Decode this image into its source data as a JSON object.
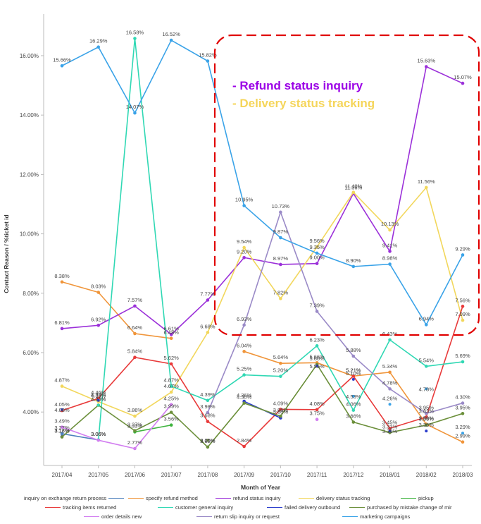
{
  "chart_data": {
    "type": "line",
    "title": "",
    "xlabel": "Month of Year",
    "ylabel": "Contact Reason / %ticket id",
    "categories": [
      "2017/04",
      "2017/05",
      "2017/06",
      "2017/07",
      "2017/08",
      "2017/09",
      "2017/10",
      "2017/11",
      "2017/12",
      "2018/01",
      "2018/02",
      "2018/03"
    ],
    "ylim": [
      2.2,
      17.4
    ],
    "yticks": [
      "4.00%",
      "6.00%",
      "8.00%",
      "10.00%",
      "12.00%",
      "14.00%",
      "16.00%"
    ],
    "ytick_values": [
      4,
      6,
      8,
      10,
      12,
      14,
      16
    ],
    "grid": false,
    "legend_position": "bottom",
    "series": [
      {
        "name": "inquiry on exchange  return process",
        "color": "#4f81bd",
        "values": [
          3.27,
          3.06,
          null,
          null,
          null,
          null,
          null,
          null,
          null,
          null,
          null,
          null
        ],
        "labels": [
          "3.27%",
          "3.06%",
          null,
          null,
          null,
          null,
          null,
          null,
          null,
          null,
          null,
          null
        ]
      },
      {
        "name": "specify refund method",
        "color": "#f0953a",
        "values": [
          8.38,
          8.03,
          6.64,
          6.48,
          null,
          6.04,
          5.64,
          5.66,
          5.21,
          5.34,
          3.59,
          2.99
        ],
        "labels": [
          "8.38%",
          "8.03%",
          "6.64%",
          "6.48%",
          null,
          "6.04%",
          "5.64%",
          "5.66%",
          "5.21%",
          "5.34%",
          "3.59%",
          "2.99%"
        ]
      },
      {
        "name": "refund status inquiry",
        "color": "#9b30d9",
        "values": [
          6.81,
          6.92,
          7.57,
          6.61,
          7.77,
          9.2,
          8.97,
          9.0,
          11.36,
          9.41,
          15.63,
          15.07
        ],
        "labels": [
          "6.81%",
          "6.92%",
          "7.57%",
          "6.61%",
          "7.77%",
          "9.20%",
          "8.97%",
          "9.00%",
          "11.36%",
          "9.41%",
          "15.63%",
          "15.07%"
        ]
      },
      {
        "name": "delivery status tracking",
        "color": "#f2d75c",
        "values": [
          4.87,
          4.35,
          3.86,
          4.67,
          6.68,
          9.54,
          7.82,
          9.56,
          11.4,
          10.13,
          11.56,
          7.09
        ],
        "labels": [
          "4.87%",
          "4.35%",
          "3.86%",
          "4.67%",
          "6.68%",
          "9.54%",
          "7.82%",
          "9.56%",
          "11.40%",
          "10.13%",
          "11.56%",
          "7.09%"
        ]
      },
      {
        "name": "pickup",
        "color": "#3fb43f",
        "values": [
          null,
          null,
          3.33,
          3.56,
          null,
          null,
          null,
          null,
          null,
          null,
          null,
          null
        ],
        "labels": [
          null,
          null,
          "3.33%",
          "3.56%",
          null,
          null,
          null,
          null,
          null,
          null,
          null,
          null
        ]
      },
      {
        "name": "tracking items returned",
        "color": "#e83a3a",
        "values": [
          4.05,
          4.46,
          5.84,
          5.62,
          3.68,
          2.84,
          4.09,
          4.08,
          5.21,
          3.45,
          3.83,
          7.56
        ],
        "labels": [
          "4.05%",
          "4.46%",
          "5.84%",
          "5.62%",
          "3.68%",
          "2.84%",
          "4.09%",
          "4.08%",
          "5.21%",
          "3.45%",
          "3.83%",
          "7.56%"
        ]
      },
      {
        "name": "customer general inquiry",
        "color": "#30d8b4",
        "values": [
          null,
          3.06,
          16.58,
          4.87,
          4.39,
          5.25,
          5.2,
          6.23,
          4.06,
          6.43,
          5.54,
          5.69
        ],
        "labels": [
          null,
          "3.06%",
          "16.58%",
          "4.87%",
          "4.39%",
          "5.25%",
          "5.20%",
          "6.23%",
          "4.06%",
          "6.43%",
          "5.54%",
          "5.69%"
        ]
      },
      {
        "name": "failed delivery outbound",
        "color": "#2a3ccc",
        "values": [
          3.17,
          null,
          null,
          null,
          null,
          4.36,
          3.8,
          null,
          null,
          null,
          null,
          null
        ],
        "labels": [
          "3.17%",
          null,
          null,
          null,
          null,
          "4.36%",
          "3.80%",
          null,
          null,
          null,
          null,
          null
        ]
      },
      {
        "name": "purchased by mistake  change of mir",
        "color": "#6b8f3a",
        "values": [
          3.16,
          4.23,
          3.37,
          3.99,
          2.82,
          4.3,
          3.86,
          5.6,
          3.66,
          3.31,
          3.56,
          3.95
        ],
        "labels": [
          "3.16%",
          "4.23%",
          "3.37%",
          "3.99%",
          "2.82%",
          "4.30%",
          "3.86%",
          "5.60%",
          "3.66%",
          "3.31%",
          "3.56%",
          "3.95%"
        ]
      },
      {
        "name": "order details  new",
        "color": "#d27ef0",
        "values": [
          3.49,
          3.05,
          2.77,
          4.25,
          null,
          null,
          null,
          3.75,
          null,
          null,
          null,
          null
        ],
        "labels": [
          "3.49%",
          "3.05%",
          "2.77%",
          "4.25%",
          null,
          null,
          null,
          "3.75%",
          null,
          null,
          null,
          null
        ]
      },
      {
        "name": "return slip inquiry or request",
        "color": "#9a8ac7",
        "values": [
          null,
          null,
          null,
          null,
          3.98,
          6.93,
          10.73,
          7.39,
          5.88,
          4.78,
          3.95,
          4.3
        ],
        "labels": [
          null,
          null,
          null,
          null,
          "3.98%",
          "6.93%",
          "10.73%",
          "7.39%",
          "5.88%",
          "4.78%",
          "3.95%",
          "4.30%"
        ]
      },
      {
        "name": "marketing campaigns",
        "color": "#3aa3e8",
        "values": [
          15.66,
          16.29,
          14.07,
          16.52,
          15.82,
          10.95,
          9.87,
          9.35,
          8.9,
          8.98,
          6.94,
          9.29
        ],
        "labels": [
          "15.66%",
          "16.29%",
          "14.07%",
          "16.52%",
          "15.82%",
          "10.95%",
          "9.87%",
          "9.35%",
          "8.90%",
          "8.98%",
          "6.94%",
          "9.29%"
        ]
      }
    ],
    "extra_points": [
      {
        "series": "customer general inquiry",
        "x": "2017/05",
        "label": "4.23%"
      },
      {
        "series": "marketing campaigns",
        "x": "2017/12",
        "label": "4.53%"
      },
      {
        "series": "marketing campaigns",
        "x": "2018/01",
        "label": "4.26%"
      },
      {
        "series": "marketing campaigns",
        "x": "2018/02",
        "label": "4.78%"
      },
      {
        "series": "marketing campaigns",
        "x": "2018/03",
        "label": "3.29%"
      },
      {
        "series": "failed delivery outbound",
        "x": "2017/04",
        "label": "4.08%"
      },
      {
        "series": "failed delivery outbound",
        "x": "2017/05",
        "label": "4.39%"
      },
      {
        "series": "failed delivery outbound",
        "x": "2017/11",
        "label": "5.55%"
      },
      {
        "series": "failed delivery outbound",
        "x": "2017/12",
        "label": "5.10%"
      },
      {
        "series": "failed delivery outbound",
        "x": "2018/01",
        "label": "3.36%"
      },
      {
        "series": "failed delivery outbound",
        "x": "2018/02",
        "label": "3.36%"
      },
      {
        "series": "purchased by mistake  change of mir",
        "x": "2017/08",
        "label": "3.05%"
      }
    ],
    "annotations": [
      {
        "text": "- Refund status inquiry",
        "color": "#9b00e6"
      },
      {
        "text": "- Delivery status tracking",
        "color": "#f5d55a"
      }
    ]
  }
}
